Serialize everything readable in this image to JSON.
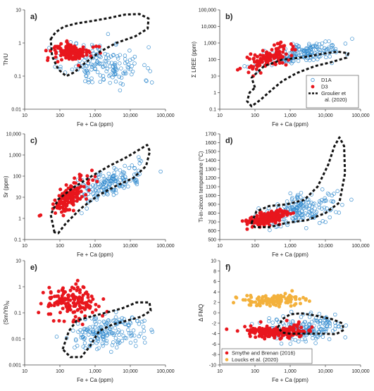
{
  "colors": {
    "d1a": "#3a8fd0",
    "d3": "#e8161d",
    "smythe": "#e8161d",
    "loucks": "#f3b13c",
    "region": "#111111"
  },
  "chart_data": [
    {
      "type": "scatter",
      "label": "a)",
      "xlabel": "Fe + Ca (ppm)",
      "ylabel": "Th/U",
      "ylabel_parts": [
        "Th/U"
      ],
      "xscale": "log",
      "yscale": "log",
      "xlim": [
        10,
        100000
      ],
      "ylim": [
        0.01,
        10
      ],
      "x_ticks": [
        10,
        100,
        1000,
        10000,
        100000
      ],
      "x_tick_labels": [
        "10",
        "100",
        "1,000",
        "10,000",
        "100,000"
      ],
      "y_ticks": [
        0.01,
        0.1,
        1,
        10
      ],
      "y_tick_labels": [
        "0.01",
        "0.1",
        "1",
        "10"
      ],
      "region": [
        [
          55,
          1.3
        ],
        [
          75,
          2.1
        ],
        [
          130,
          3.1
        ],
        [
          300,
          3.9
        ],
        [
          800,
          4.6
        ],
        [
          2500,
          5.7
        ],
        [
          7000,
          7.2
        ],
        [
          18000,
          7.5
        ],
        [
          33000,
          5.5
        ],
        [
          31000,
          2.7
        ],
        [
          14000,
          1.6
        ],
        [
          4000,
          1.0
        ],
        [
          1400,
          0.55
        ],
        [
          500,
          0.24
        ],
        [
          260,
          0.13
        ],
        [
          150,
          0.1
        ],
        [
          90,
          0.16
        ],
        [
          60,
          0.4
        ],
        [
          55,
          1.3
        ]
      ],
      "clusters": [
        {
          "series": "D1A",
          "n": 160,
          "seed": 11,
          "cx": 3.25,
          "cy": -0.65,
          "sx": 0.55,
          "sy": 0.35,
          "corr": -0.2
        },
        {
          "series": "D3",
          "n": 130,
          "seed": 12,
          "cx": 2.35,
          "cy": -0.28,
          "sx": 0.28,
          "sy": 0.13,
          "corr": 0.0
        }
      ]
    },
    {
      "type": "scatter",
      "label": "b)",
      "xlabel": "Fe + Ca (ppm)",
      "ylabel": "Σ LREE (ppm)",
      "ylabel_parts": [
        "Σ LREE (ppm)"
      ],
      "xscale": "log",
      "yscale": "log",
      "xlim": [
        10,
        100000
      ],
      "ylim": [
        0.1,
        100000
      ],
      "x_ticks": [
        10,
        100,
        1000,
        10000,
        100000
      ],
      "x_tick_labels": [
        "10",
        "100",
        "1,000",
        "10,000",
        "100,000"
      ],
      "y_ticks": [
        0.1,
        1,
        10,
        100,
        1000,
        10000,
        100000
      ],
      "y_tick_labels": [
        "0.1",
        "1",
        "10",
        "100",
        "1,000",
        "10,000",
        "100,000"
      ],
      "region": [
        [
          100,
          2
        ],
        [
          80,
          8
        ],
        [
          180,
          40
        ],
        [
          600,
          100
        ],
        [
          2000,
          130
        ],
        [
          8000,
          220
        ],
        [
          22000,
          300
        ],
        [
          45000,
          240
        ],
        [
          40000,
          130
        ],
        [
          15000,
          70
        ],
        [
          5000,
          40
        ],
        [
          1500,
          15
        ],
        [
          600,
          5
        ],
        [
          300,
          1.5
        ],
        [
          150,
          0.4
        ],
        [
          80,
          0.15
        ],
        [
          60,
          0.3
        ],
        [
          70,
          1
        ],
        [
          100,
          2
        ]
      ],
      "clusters": [
        {
          "series": "D1A",
          "n": 170,
          "seed": 21,
          "cx": 3.4,
          "cy": 2.35,
          "sx": 0.55,
          "sy": 0.35,
          "corr": 0.6
        },
        {
          "series": "D3",
          "n": 120,
          "seed": 22,
          "cx": 2.4,
          "cy": 2.1,
          "sx": 0.3,
          "sy": 0.35,
          "corr": 0.6
        }
      ],
      "legend": {
        "placement": "bottom-right",
        "entries": [
          {
            "key": "d1a",
            "label": "D1A",
            "marker": "open-circle"
          },
          {
            "key": "d3",
            "label": "D3",
            "marker": "filled-circle"
          },
          {
            "key": "region",
            "label": "Groulier et",
            "label2": "al. (2020)",
            "marker": "dashed-line"
          }
        ]
      }
    },
    {
      "type": "scatter",
      "label": "c)",
      "xlabel": "Fe + Ca (ppm)",
      "ylabel": "Sr (ppm)",
      "ylabel_parts": [
        "Sr (ppm)"
      ],
      "xscale": "log",
      "yscale": "log",
      "xlim": [
        10,
        100000
      ],
      "ylim": [
        0.1,
        10000
      ],
      "x_ticks": [
        10,
        100,
        1000,
        10000,
        100000
      ],
      "x_tick_labels": [
        "10",
        "100",
        "1,000",
        "10,000",
        "100,000"
      ],
      "y_ticks": [
        0.1,
        1,
        10,
        100,
        1000,
        10000
      ],
      "y_tick_labels": [
        "0.1",
        "1",
        "10",
        "100",
        "1,000",
        "10,000"
      ],
      "region": [
        [
          70,
          0.22
        ],
        [
          55,
          1.5
        ],
        [
          90,
          8
        ],
        [
          250,
          30
        ],
        [
          800,
          100
        ],
        [
          2500,
          300
        ],
        [
          8000,
          800
        ],
        [
          20000,
          2000
        ],
        [
          30000,
          3000
        ],
        [
          36000,
          1500
        ],
        [
          28000,
          300
        ],
        [
          12000,
          80
        ],
        [
          4000,
          35
        ],
        [
          1200,
          12
        ],
        [
          400,
          3
        ],
        [
          150,
          0.6
        ],
        [
          90,
          0.2
        ],
        [
          70,
          0.22
        ]
      ],
      "clusters": [
        {
          "series": "D1A",
          "n": 170,
          "seed": 31,
          "cx": 3.35,
          "cy": 1.6,
          "sx": 0.55,
          "sy": 0.45,
          "corr": 0.7
        },
        {
          "series": "D3",
          "n": 140,
          "seed": 32,
          "cx": 2.25,
          "cy": 1.0,
          "sx": 0.3,
          "sy": 0.45,
          "corr": 0.7
        }
      ]
    },
    {
      "type": "scatter",
      "label": "d)",
      "xlabel": "Fe + Ca (ppm)",
      "ylabel": "Ti-in-zircon temperature (°C)",
      "ylabel_parts": [
        "Ti-in-zircon temperature (°C)"
      ],
      "xscale": "log",
      "yscale": "linear",
      "xlim": [
        10,
        100000
      ],
      "ylim": [
        500,
        1700
      ],
      "x_ticks": [
        10,
        100,
        1000,
        10000,
        100000
      ],
      "x_tick_labels": [
        "10",
        "100",
        "1,000",
        "10,000",
        "100,000"
      ],
      "y_ticks": [
        500,
        600,
        700,
        800,
        900,
        1000,
        1100,
        1200,
        1300,
        1400,
        1500,
        1600,
        1700
      ],
      "y_tick_labels": [
        "500",
        "600",
        "700",
        "800",
        "900",
        "1000",
        "1100",
        "1200",
        "1300",
        "1400",
        "1500",
        "1600",
        "1700"
      ],
      "region": [
        [
          80,
          690
        ],
        [
          110,
          820
        ],
        [
          250,
          880
        ],
        [
          800,
          900
        ],
        [
          2500,
          950
        ],
        [
          6000,
          1100
        ],
        [
          12000,
          1350
        ],
        [
          18000,
          1560
        ],
        [
          25000,
          1660
        ],
        [
          34000,
          1560
        ],
        [
          36000,
          1250
        ],
        [
          25000,
          920
        ],
        [
          10000,
          800
        ],
        [
          3000,
          720
        ],
        [
          800,
          690
        ],
        [
          250,
          640
        ],
        [
          100,
          640
        ],
        [
          80,
          690
        ]
      ],
      "clusters": [
        {
          "series": "D1A",
          "n": 190,
          "seed": 41,
          "cx": 3.3,
          "cy": 840,
          "sx": 0.55,
          "sy": 90,
          "corr": 0.5
        },
        {
          "series": "D3",
          "n": 170,
          "seed": 42,
          "cx": 2.35,
          "cy": 745,
          "sx": 0.3,
          "sy": 50,
          "corr": 0.6
        }
      ]
    },
    {
      "type": "scatter",
      "label": "e)",
      "xlabel": "Fe + Ca (ppm)",
      "ylabel": "(Sm/Yb)N",
      "ylabel_parts": [
        "(Sm/Yb)",
        "N"
      ],
      "xscale": "log",
      "yscale": "log",
      "xlim": [
        10,
        100000
      ],
      "ylim": [
        0.001,
        10
      ],
      "x_ticks": [
        10,
        100,
        1000,
        10000,
        100000
      ],
      "x_tick_labels": [
        "10",
        "100",
        "1,000",
        "10,000",
        "100,000"
      ],
      "y_ticks": [
        0.001,
        0.01,
        0.1,
        1,
        10
      ],
      "y_tick_labels": [
        "0.001",
        "0.01",
        "0.1",
        "1",
        "10"
      ],
      "region": [
        [
          120,
          0.004
        ],
        [
          180,
          0.02
        ],
        [
          300,
          0.05
        ],
        [
          700,
          0.07
        ],
        [
          2000,
          0.1
        ],
        [
          6000,
          0.15
        ],
        [
          15000,
          0.25
        ],
        [
          35000,
          0.25
        ],
        [
          38000,
          0.12
        ],
        [
          20000,
          0.07
        ],
        [
          8000,
          0.05
        ],
        [
          3000,
          0.035
        ],
        [
          1300,
          0.02
        ],
        [
          700,
          0.005
        ],
        [
          400,
          0.002
        ],
        [
          200,
          0.002
        ],
        [
          120,
          0.004
        ]
      ],
      "clusters": [
        {
          "series": "D1A",
          "n": 180,
          "seed": 51,
          "cx": 3.3,
          "cy": -1.75,
          "sx": 0.55,
          "sy": 0.35,
          "corr": 0.3
        },
        {
          "series": "D3",
          "n": 150,
          "seed": 52,
          "cx": 2.35,
          "cy": -0.6,
          "sx": 0.35,
          "sy": 0.35,
          "corr": 0.0
        }
      ]
    },
    {
      "type": "scatter",
      "label": "f)",
      "xlabel": "Fe + Ca (ppm)",
      "ylabel": "Δ FMQ",
      "ylabel_parts": [
        "Δ FMQ"
      ],
      "xscale": "log",
      "yscale": "linear",
      "xlim": [
        10,
        100000
      ],
      "ylim": [
        -10,
        10
      ],
      "x_ticks": [
        10,
        100,
        1000,
        10000,
        100000
      ],
      "x_tick_labels": [
        "10",
        "100",
        "1,000",
        "10,000",
        "100,000"
      ],
      "y_ticks": [
        -10,
        -8,
        -6,
        -4,
        -2,
        0,
        2,
        4,
        6,
        8,
        10
      ],
      "y_tick_labels": [
        "-10",
        "-8",
        "-6",
        "-4",
        "-2",
        "0",
        "2",
        "4",
        "6",
        "8",
        "10"
      ],
      "region": [
        [
          450,
          -2.8
        ],
        [
          600,
          -1.2
        ],
        [
          1000,
          -0.3
        ],
        [
          2000,
          -0.1
        ],
        [
          5000,
          -0.5
        ],
        [
          15000,
          -1.2
        ],
        [
          30000,
          -2.0
        ],
        [
          33000,
          -3.3
        ],
        [
          20000,
          -4.1
        ],
        [
          8000,
          -4.0
        ],
        [
          3000,
          -4.0
        ],
        [
          1000,
          -4.0
        ],
        [
          600,
          -3.8
        ],
        [
          450,
          -2.8
        ]
      ],
      "clusters": [
        {
          "series": "D1A",
          "n": 190,
          "seed": 61,
          "cx": 3.35,
          "cy": -2.8,
          "sx": 0.55,
          "sy": 1.3,
          "corr": 0.2
        },
        {
          "series": "smythe",
          "n": 160,
          "seed": 62,
          "cx": 2.6,
          "cy": -3.6,
          "sx": 0.45,
          "sy": 0.6,
          "corr": 0.0
        },
        {
          "series": "loucks",
          "n": 120,
          "seed": 63,
          "cx": 2.5,
          "cy": 2.4,
          "sx": 0.4,
          "sy": 0.6,
          "corr": 0.0
        }
      ],
      "legend": {
        "placement": "bottom",
        "entries": [
          {
            "key": "smythe",
            "label": "Smythe and Brenan (2016)",
            "marker": "filled-circle"
          },
          {
            "key": "loucks",
            "label": "Loucks et al. (2020)",
            "marker": "filled-circle"
          }
        ]
      }
    }
  ]
}
